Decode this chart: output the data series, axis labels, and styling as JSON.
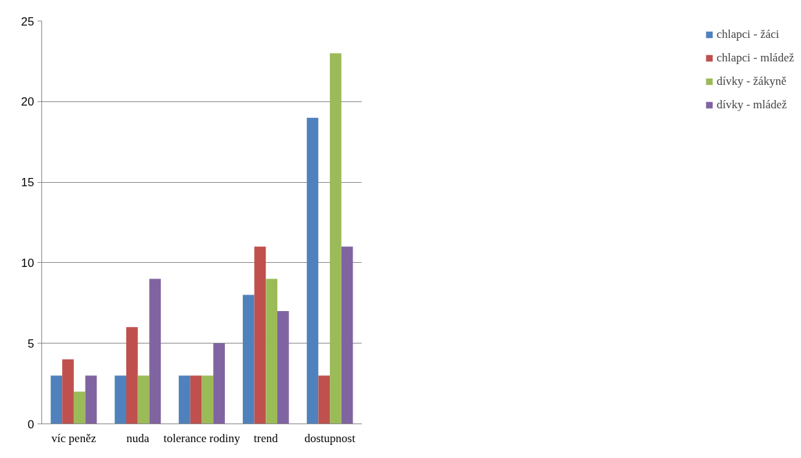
{
  "chart_data": {
    "type": "bar",
    "categories": [
      "víc peněz",
      "nuda",
      "tolerance rodiny",
      "trend",
      "dostupnost"
    ],
    "series": [
      {
        "name": "chlapci - žáci",
        "color": "#4f81bd",
        "values": [
          3,
          3,
          3,
          8,
          19
        ]
      },
      {
        "name": "chlapci - mládež",
        "color": "#c0504d",
        "values": [
          4,
          6,
          3,
          11,
          3
        ]
      },
      {
        "name": "dívky - žákyně",
        "color": "#9bbb59",
        "values": [
          2,
          3,
          3,
          9,
          23
        ]
      },
      {
        "name": "dívky - mládež",
        "color": "#8064a2",
        "values": [
          3,
          9,
          5,
          7,
          11
        ]
      }
    ],
    "ylim": [
      0,
      25
    ],
    "yticks": [
      0,
      5,
      10,
      15,
      20,
      25
    ],
    "grid": "y",
    "legend": "right"
  }
}
